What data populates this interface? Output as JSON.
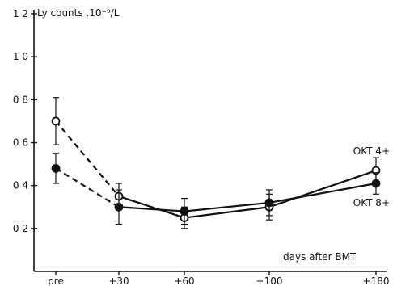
{
  "chart_data": {
    "type": "line",
    "title": "Ly counts .10⁻⁹/L",
    "xlabel": "days after BMT",
    "ylabel": "",
    "categories": [
      "pre",
      "+30",
      "+60",
      "+100",
      "+180"
    ],
    "yticks": [
      "0 2",
      "0 4",
      "0 6",
      "0 8",
      "1 0",
      "1 2"
    ],
    "ytick_values": [
      0.2,
      0.4,
      0.6,
      0.8,
      1.0,
      1.2
    ],
    "ylim": [
      0,
      1.2
    ],
    "series": [
      {
        "name": "OKT 4+",
        "marker": "open-circle",
        "values": [
          0.7,
          0.35,
          0.25,
          0.3,
          0.47
        ],
        "error": [
          0.11,
          0.06,
          0.05,
          0.06,
          0.06
        ]
      },
      {
        "name": "OKT 8+",
        "marker": "filled-circle",
        "values": [
          0.48,
          0.3,
          0.28,
          0.32,
          0.41
        ],
        "error": [
          0.07,
          0.08,
          0.06,
          0.06,
          0.05
        ]
      }
    ],
    "segment_styles": [
      "dashed",
      "solid",
      "solid",
      "solid"
    ],
    "grid": false
  }
}
